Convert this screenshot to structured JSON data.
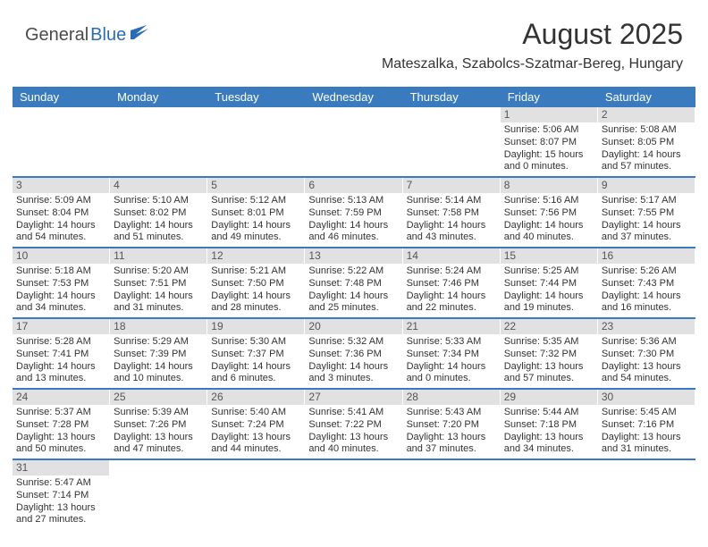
{
  "logo": {
    "text1": "General",
    "text2": "Blue"
  },
  "title": "August 2025",
  "location": "Mateszalka, Szabolcs-Szatmar-Bereg, Hungary",
  "colors": {
    "header_bg": "#3a7bbf",
    "header_text": "#ffffff",
    "daynum_bg": "#e1e1e1",
    "row_border": "#3a7bbf",
    "logo_blue": "#2a6db5",
    "text": "#333333"
  },
  "day_headers": [
    "Sunday",
    "Monday",
    "Tuesday",
    "Wednesday",
    "Thursday",
    "Friday",
    "Saturday"
  ],
  "weeks": [
    [
      {
        "n": "",
        "empty": true
      },
      {
        "n": "",
        "empty": true
      },
      {
        "n": "",
        "empty": true
      },
      {
        "n": "",
        "empty": true
      },
      {
        "n": "",
        "empty": true
      },
      {
        "n": "1",
        "sunrise": "5:06 AM",
        "sunset": "8:07 PM",
        "daylight": "15 hours and 0 minutes."
      },
      {
        "n": "2",
        "sunrise": "5:08 AM",
        "sunset": "8:05 PM",
        "daylight": "14 hours and 57 minutes."
      }
    ],
    [
      {
        "n": "3",
        "sunrise": "5:09 AM",
        "sunset": "8:04 PM",
        "daylight": "14 hours and 54 minutes."
      },
      {
        "n": "4",
        "sunrise": "5:10 AM",
        "sunset": "8:02 PM",
        "daylight": "14 hours and 51 minutes."
      },
      {
        "n": "5",
        "sunrise": "5:12 AM",
        "sunset": "8:01 PM",
        "daylight": "14 hours and 49 minutes."
      },
      {
        "n": "6",
        "sunrise": "5:13 AM",
        "sunset": "7:59 PM",
        "daylight": "14 hours and 46 minutes."
      },
      {
        "n": "7",
        "sunrise": "5:14 AM",
        "sunset": "7:58 PM",
        "daylight": "14 hours and 43 minutes."
      },
      {
        "n": "8",
        "sunrise": "5:16 AM",
        "sunset": "7:56 PM",
        "daylight": "14 hours and 40 minutes."
      },
      {
        "n": "9",
        "sunrise": "5:17 AM",
        "sunset": "7:55 PM",
        "daylight": "14 hours and 37 minutes."
      }
    ],
    [
      {
        "n": "10",
        "sunrise": "5:18 AM",
        "sunset": "7:53 PM",
        "daylight": "14 hours and 34 minutes."
      },
      {
        "n": "11",
        "sunrise": "5:20 AM",
        "sunset": "7:51 PM",
        "daylight": "14 hours and 31 minutes."
      },
      {
        "n": "12",
        "sunrise": "5:21 AM",
        "sunset": "7:50 PM",
        "daylight": "14 hours and 28 minutes."
      },
      {
        "n": "13",
        "sunrise": "5:22 AM",
        "sunset": "7:48 PM",
        "daylight": "14 hours and 25 minutes."
      },
      {
        "n": "14",
        "sunrise": "5:24 AM",
        "sunset": "7:46 PM",
        "daylight": "14 hours and 22 minutes."
      },
      {
        "n": "15",
        "sunrise": "5:25 AM",
        "sunset": "7:44 PM",
        "daylight": "14 hours and 19 minutes."
      },
      {
        "n": "16",
        "sunrise": "5:26 AM",
        "sunset": "7:43 PM",
        "daylight": "14 hours and 16 minutes."
      }
    ],
    [
      {
        "n": "17",
        "sunrise": "5:28 AM",
        "sunset": "7:41 PM",
        "daylight": "14 hours and 13 minutes."
      },
      {
        "n": "18",
        "sunrise": "5:29 AM",
        "sunset": "7:39 PM",
        "daylight": "14 hours and 10 minutes."
      },
      {
        "n": "19",
        "sunrise": "5:30 AM",
        "sunset": "7:37 PM",
        "daylight": "14 hours and 6 minutes."
      },
      {
        "n": "20",
        "sunrise": "5:32 AM",
        "sunset": "7:36 PM",
        "daylight": "14 hours and 3 minutes."
      },
      {
        "n": "21",
        "sunrise": "5:33 AM",
        "sunset": "7:34 PM",
        "daylight": "14 hours and 0 minutes."
      },
      {
        "n": "22",
        "sunrise": "5:35 AM",
        "sunset": "7:32 PM",
        "daylight": "13 hours and 57 minutes."
      },
      {
        "n": "23",
        "sunrise": "5:36 AM",
        "sunset": "7:30 PM",
        "daylight": "13 hours and 54 minutes."
      }
    ],
    [
      {
        "n": "24",
        "sunrise": "5:37 AM",
        "sunset": "7:28 PM",
        "daylight": "13 hours and 50 minutes."
      },
      {
        "n": "25",
        "sunrise": "5:39 AM",
        "sunset": "7:26 PM",
        "daylight": "13 hours and 47 minutes."
      },
      {
        "n": "26",
        "sunrise": "5:40 AM",
        "sunset": "7:24 PM",
        "daylight": "13 hours and 44 minutes."
      },
      {
        "n": "27",
        "sunrise": "5:41 AM",
        "sunset": "7:22 PM",
        "daylight": "13 hours and 40 minutes."
      },
      {
        "n": "28",
        "sunrise": "5:43 AM",
        "sunset": "7:20 PM",
        "daylight": "13 hours and 37 minutes."
      },
      {
        "n": "29",
        "sunrise": "5:44 AM",
        "sunset": "7:18 PM",
        "daylight": "13 hours and 34 minutes."
      },
      {
        "n": "30",
        "sunrise": "5:45 AM",
        "sunset": "7:16 PM",
        "daylight": "13 hours and 31 minutes."
      }
    ],
    [
      {
        "n": "31",
        "sunrise": "5:47 AM",
        "sunset": "7:14 PM",
        "daylight": "13 hours and 27 minutes."
      },
      {
        "n": "",
        "empty": true
      },
      {
        "n": "",
        "empty": true
      },
      {
        "n": "",
        "empty": true
      },
      {
        "n": "",
        "empty": true
      },
      {
        "n": "",
        "empty": true
      },
      {
        "n": "",
        "empty": true
      }
    ]
  ],
  "labels": {
    "sunrise": "Sunrise:",
    "sunset": "Sunset:",
    "daylight": "Daylight:"
  }
}
